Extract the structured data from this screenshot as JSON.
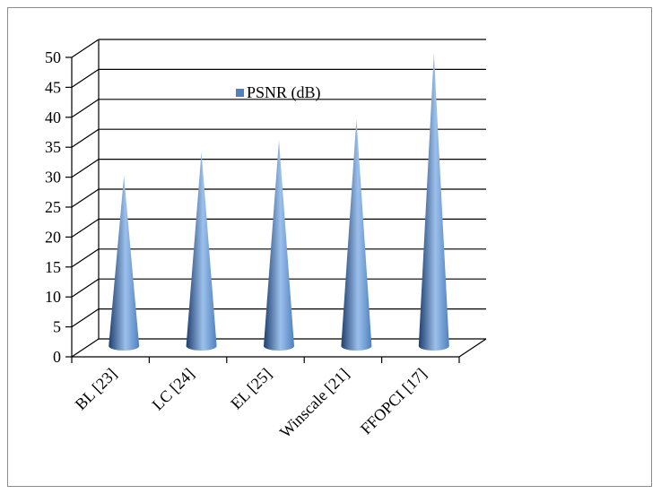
{
  "chart_data": {
    "type": "bar",
    "title": "",
    "xlabel": "",
    "ylabel": "",
    "categories": [
      "BL [23]",
      "LC [24]",
      "EL [25]",
      "Winscale [21]",
      "FFOPCI [17]"
    ],
    "series": [
      {
        "name": "PSNR (dB)",
        "values": [
          29,
          33,
          35,
          38.5,
          49.5
        ]
      }
    ],
    "ylim": [
      0,
      50
    ],
    "yticks": [
      0,
      5,
      10,
      15,
      20,
      25,
      30,
      35,
      40,
      45,
      50
    ],
    "grid": true,
    "legend": "top-center",
    "bar_shape": "cone",
    "colors": {
      "series": "#4f81bd",
      "series_dark": "#1f3f6e",
      "series_light": "#9cc0ec",
      "grid": "#000000"
    }
  }
}
